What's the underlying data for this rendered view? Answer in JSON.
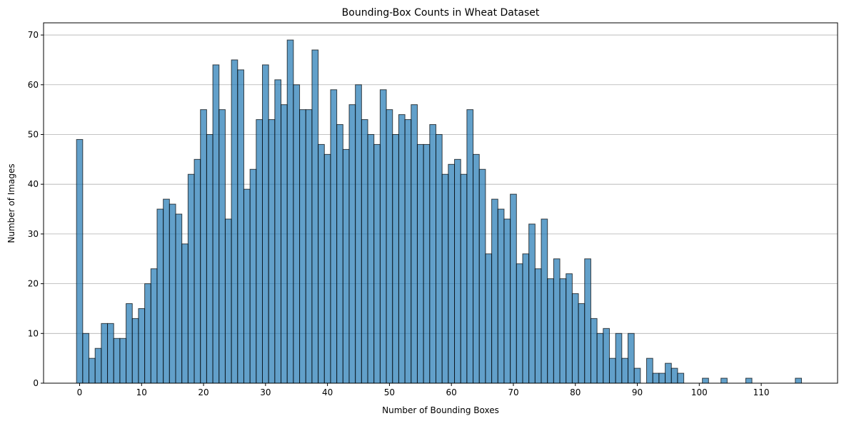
{
  "chart_data": {
    "type": "bar",
    "title": "Bounding-Box Counts in Wheat Dataset",
    "xlabel": "Number of Bounding Boxes",
    "ylabel": "Number of Images",
    "x": [
      0,
      1,
      2,
      3,
      4,
      5,
      6,
      7,
      8,
      9,
      10,
      11,
      12,
      13,
      14,
      15,
      16,
      17,
      18,
      19,
      20,
      21,
      22,
      23,
      24,
      25,
      26,
      27,
      28,
      29,
      30,
      31,
      32,
      33,
      34,
      35,
      36,
      37,
      38,
      39,
      40,
      41,
      42,
      43,
      44,
      45,
      46,
      47,
      48,
      49,
      50,
      51,
      52,
      53,
      54,
      55,
      56,
      57,
      58,
      59,
      60,
      61,
      62,
      63,
      64,
      65,
      66,
      67,
      68,
      69,
      70,
      71,
      72,
      73,
      74,
      75,
      76,
      77,
      78,
      79,
      80,
      81,
      82,
      83,
      84,
      85,
      86,
      87,
      88,
      89,
      90,
      91,
      92,
      93,
      94,
      95,
      96,
      97,
      98,
      99,
      100,
      101,
      102,
      103,
      104,
      105,
      106,
      107,
      108,
      109,
      110,
      111,
      112,
      113,
      114,
      115,
      116
    ],
    "values": [
      49,
      10,
      5,
      7,
      12,
      12,
      9,
      9,
      16,
      13,
      15,
      20,
      23,
      35,
      37,
      36,
      34,
      28,
      42,
      45,
      55,
      50,
      64,
      55,
      33,
      65,
      63,
      39,
      43,
      53,
      64,
      53,
      61,
      56,
      69,
      60,
      55,
      55,
      67,
      48,
      46,
      59,
      52,
      47,
      56,
      60,
      53,
      50,
      48,
      59,
      55,
      50,
      54,
      53,
      56,
      48,
      48,
      52,
      50,
      42,
      44,
      45,
      42,
      55,
      46,
      43,
      26,
      37,
      35,
      33,
      38,
      24,
      26,
      32,
      23,
      33,
      21,
      25,
      21,
      22,
      18,
      16,
      25,
      13,
      10,
      11,
      5,
      10,
      5,
      10,
      3,
      0,
      5,
      2,
      2,
      4,
      3,
      2,
      0,
      0,
      0,
      1,
      0,
      0,
      1,
      0,
      0,
      0,
      1,
      0,
      0,
      0,
      0,
      0,
      0,
      0,
      1
    ],
    "xticks": [
      0,
      10,
      20,
      30,
      40,
      50,
      60,
      70,
      80,
      90,
      100,
      110
    ],
    "yticks": [
      0,
      10,
      20,
      30,
      40,
      50,
      60,
      70
    ],
    "xlim": [
      -5.82,
      122.32
    ],
    "ylim": [
      0,
      72.45
    ],
    "grid": "y",
    "legend": "none",
    "bar_color": "#1f77b4",
    "bar_opacity": 0.7,
    "edge_color": "#000000"
  }
}
